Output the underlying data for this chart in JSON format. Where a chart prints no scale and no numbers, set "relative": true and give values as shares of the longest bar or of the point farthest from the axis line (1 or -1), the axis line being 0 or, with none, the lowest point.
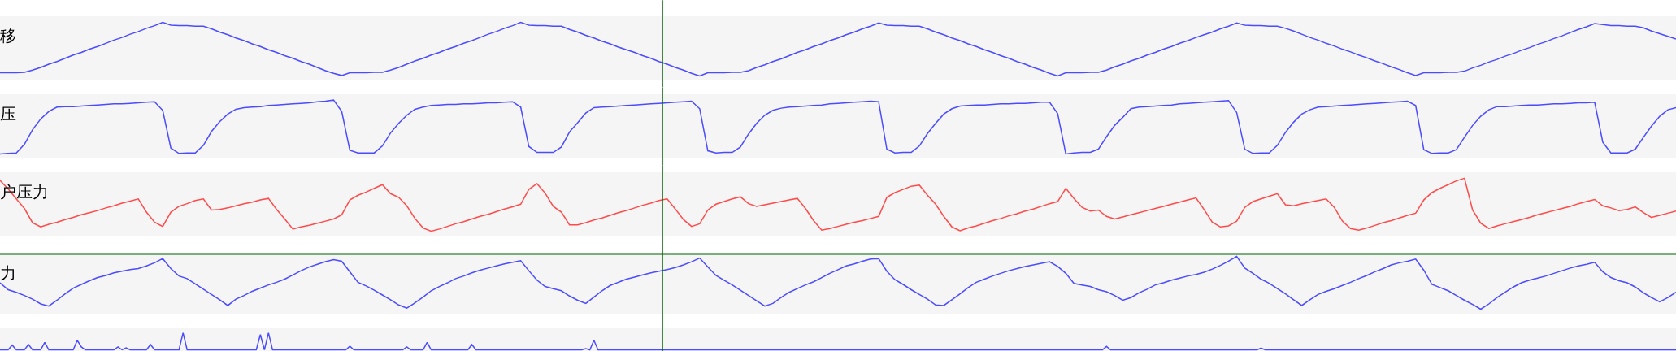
{
  "chart_data": [
    {
      "type": "line",
      "title": "移",
      "relative": true,
      "categories": [
        null,
        null,
        null,
        null,
        null,
        null,
        null,
        null,
        null,
        null,
        null,
        null,
        null,
        null,
        null,
        null,
        null,
        null,
        null,
        null,
        null,
        null,
        null,
        null,
        null,
        null,
        null,
        null,
        null,
        null,
        null,
        null,
        null,
        null,
        null,
        null,
        null,
        null,
        null,
        null,
        null,
        null,
        null,
        null,
        null,
        null,
        null,
        null,
        null,
        null,
        null,
        null,
        null,
        null,
        null,
        null,
        null,
        null,
        null,
        null,
        null,
        null,
        null,
        null,
        null,
        null,
        null,
        null,
        null,
        null,
        null,
        null,
        null,
        null,
        null,
        null,
        null,
        null,
        null,
        null,
        null,
        null,
        null,
        null,
        null,
        null,
        null,
        null,
        null,
        null,
        null,
        null,
        null,
        null,
        null,
        null,
        null,
        null,
        null,
        null,
        null,
        null,
        null,
        null,
        null,
        null,
        null,
        null,
        null,
        null,
        null,
        null,
        null,
        null,
        null,
        null,
        null,
        null,
        null,
        null,
        null,
        null,
        null,
        null,
        null,
        null,
        null,
        null,
        null,
        null,
        null,
        null,
        null,
        null,
        null,
        null,
        null,
        null,
        null,
        null,
        null,
        null,
        null,
        null,
        null,
        null,
        null,
        null,
        null,
        null,
        null,
        null,
        null,
        null,
        null,
        null,
        null,
        null,
        null,
        null,
        null,
        null,
        null,
        null,
        null,
        null,
        null,
        null,
        null,
        null,
        null,
        null,
        null,
        null,
        null,
        null,
        null,
        null,
        null,
        null,
        null,
        null,
        null,
        null,
        null,
        null,
        null,
        null,
        null,
        null,
        null,
        null,
        null,
        null,
        null,
        null,
        null,
        null,
        null,
        null,
        null,
        null,
        null,
        null,
        null,
        null,
        null
      ],
      "series": [
        {
          "color": "#4b4bff",
          "values": [
            0.06,
            0.06,
            0.06,
            0.07,
            0.11,
            0.16,
            0.22,
            0.27,
            0.33,
            0.39,
            0.44,
            0.5,
            0.55,
            0.61,
            0.67,
            0.72,
            0.78,
            0.83,
            0.89,
            0.94,
            1.0,
            0.95,
            0.94,
            0.94,
            0.93,
            0.93,
            0.88,
            0.82,
            0.77,
            0.71,
            0.66,
            0.6,
            0.55,
            0.49,
            0.44,
            0.38,
            0.33,
            0.27,
            0.22,
            0.16,
            0.1,
            0.05,
            0.01,
            0.06,
            0.06,
            0.06,
            0.07,
            0.07,
            0.11,
            0.16,
            0.22,
            0.28,
            0.33,
            0.39,
            0.44,
            0.5,
            0.55,
            0.61,
            0.66,
            0.72,
            0.78,
            0.83,
            0.89,
            0.94,
            1.0,
            0.95,
            0.94,
            0.94,
            0.93,
            0.93,
            0.87,
            0.82,
            0.76,
            0.71,
            0.65,
            0.6,
            0.54,
            0.49,
            0.44,
            0.38,
            0.33,
            0.27,
            0.22,
            0.16,
            0.11,
            0.05,
            0.0,
            0.06,
            0.06,
            0.06,
            0.07,
            0.07,
            0.1,
            0.16,
            0.21,
            0.27,
            0.32,
            0.38,
            0.44,
            0.49,
            0.55,
            0.6,
            0.66,
            0.71,
            0.77,
            0.82,
            0.88,
            0.93,
            0.99,
            0.95,
            0.94,
            0.94,
            0.93,
            0.93,
            0.88,
            0.82,
            0.77,
            0.71,
            0.66,
            0.6,
            0.55,
            0.49,
            0.44,
            0.38,
            0.33,
            0.27,
            0.22,
            0.16,
            0.11,
            0.05,
            0.0,
            0.06,
            0.06,
            0.06,
            0.07,
            0.07,
            0.11,
            0.17,
            0.22,
            0.28,
            0.33,
            0.39,
            0.44,
            0.5,
            0.55,
            0.61,
            0.66,
            0.72,
            0.77,
            0.82,
            0.88,
            0.93,
            0.99,
            0.95,
            0.94,
            0.94,
            0.93,
            0.93,
            0.89,
            0.84,
            0.78,
            0.72,
            0.67,
            0.61,
            0.56,
            0.5,
            0.45,
            0.39,
            0.34,
            0.28,
            0.23,
            0.17,
            0.12,
            0.06,
            0.01,
            0.06,
            0.06,
            0.06,
            0.07,
            0.07,
            0.09,
            0.15,
            0.2,
            0.26,
            0.31,
            0.37,
            0.42,
            0.48,
            0.53,
            0.59,
            0.64,
            0.7,
            0.75,
            0.81,
            0.87,
            0.92,
            0.98,
            0.96,
            0.94,
            0.94,
            0.93,
            0.93,
            0.9,
            0.84,
            0.79,
            0.74,
            0.69
          ]
        }
      ]
    },
    {
      "type": "line",
      "title": "压",
      "relative": true,
      "categories": [
        null,
        null,
        null,
        null,
        null,
        null,
        null,
        null,
        null,
        null,
        null,
        null,
        null,
        null,
        null,
        null,
        null,
        null,
        null,
        null,
        null,
        null,
        null,
        null,
        null,
        null,
        null,
        null,
        null,
        null,
        null,
        null,
        null,
        null,
        null,
        null,
        null,
        null,
        null,
        null,
        null,
        null,
        null,
        null,
        null,
        null,
        null,
        null,
        null,
        null,
        null,
        null,
        null,
        null,
        null,
        null,
        null,
        null,
        null,
        null,
        null,
        null,
        null,
        null,
        null,
        null,
        null,
        null,
        null,
        null,
        null,
        null,
        null,
        null,
        null,
        null,
        null,
        null,
        null,
        null,
        null,
        null,
        null,
        null,
        null,
        null,
        null,
        null,
        null,
        null,
        null,
        null,
        null,
        null,
        null,
        null,
        null,
        null,
        null,
        null,
        null,
        null,
        null,
        null,
        null,
        null,
        null,
        null,
        null,
        null,
        null,
        null,
        null,
        null,
        null,
        null,
        null,
        null,
        null,
        null,
        null,
        null,
        null,
        null,
        null,
        null,
        null,
        null,
        null,
        null,
        null,
        null,
        null,
        null,
        null,
        null,
        null,
        null,
        null,
        null,
        null,
        null,
        null,
        null,
        null,
        null,
        null,
        null,
        null,
        null,
        null,
        null,
        null,
        null,
        null,
        null,
        null,
        null,
        null,
        null,
        null,
        null,
        null,
        null,
        null,
        null,
        null,
        null,
        null,
        null,
        null,
        null,
        null,
        null,
        null,
        null,
        null,
        null,
        null,
        null,
        null,
        null,
        null,
        null,
        null,
        null,
        null,
        null,
        null,
        null,
        null,
        null,
        null,
        null,
        null,
        null,
        null,
        null,
        null,
        null,
        null,
        null,
        null,
        null,
        null,
        null,
        null
      ],
      "series": [
        {
          "color": "#4b4bff",
          "values": [
            0.0,
            0.01,
            0.02,
            0.18,
            0.45,
            0.65,
            0.79,
            0.87,
            0.88,
            0.88,
            0.89,
            0.9,
            0.91,
            0.92,
            0.93,
            0.93,
            0.94,
            0.95,
            0.96,
            0.97,
            0.81,
            0.11,
            0.01,
            0.02,
            0.02,
            0.16,
            0.42,
            0.6,
            0.74,
            0.83,
            0.86,
            0.87,
            0.88,
            0.9,
            0.91,
            0.92,
            0.93,
            0.94,
            0.95,
            0.97,
            0.98,
            1.0,
            0.79,
            0.07,
            0.02,
            0.02,
            0.02,
            0.15,
            0.39,
            0.57,
            0.72,
            0.83,
            0.87,
            0.9,
            0.91,
            0.92,
            0.92,
            0.93,
            0.93,
            0.94,
            0.95,
            0.95,
            0.96,
            0.97,
            0.87,
            0.14,
            0.03,
            0.03,
            0.03,
            0.13,
            0.41,
            0.58,
            0.76,
            0.86,
            0.87,
            0.88,
            0.89,
            0.9,
            0.91,
            0.92,
            0.93,
            0.94,
            0.95,
            0.96,
            0.97,
            0.98,
            0.84,
            0.06,
            0.02,
            0.03,
            0.03,
            0.13,
            0.37,
            0.57,
            0.72,
            0.81,
            0.85,
            0.87,
            0.88,
            0.89,
            0.9,
            0.91,
            0.93,
            0.94,
            0.95,
            0.96,
            0.97,
            0.98,
            0.97,
            0.09,
            0.02,
            0.03,
            0.03,
            0.15,
            0.38,
            0.57,
            0.74,
            0.84,
            0.89,
            0.9,
            0.91,
            0.91,
            0.92,
            0.93,
            0.93,
            0.94,
            0.94,
            0.95,
            0.96,
            0.96,
            0.75,
            0.0,
            0.02,
            0.03,
            0.03,
            0.09,
            0.32,
            0.53,
            0.68,
            0.84,
            0.87,
            0.88,
            0.89,
            0.9,
            0.91,
            0.93,
            0.94,
            0.95,
            0.96,
            0.97,
            0.98,
            0.99,
            0.77,
            0.09,
            0.01,
            0.02,
            0.02,
            0.16,
            0.4,
            0.59,
            0.74,
            0.82,
            0.87,
            0.88,
            0.89,
            0.9,
            0.91,
            0.92,
            0.93,
            0.94,
            0.95,
            0.96,
            0.97,
            0.98,
            0.9,
            0.08,
            0.01,
            0.02,
            0.02,
            0.08,
            0.31,
            0.53,
            0.7,
            0.82,
            0.88,
            0.88,
            0.89,
            0.9,
            0.91,
            0.91,
            0.92,
            0.93,
            0.93,
            0.94,
            0.95,
            0.95,
            0.96,
            0.22,
            0.02,
            0.02,
            0.02,
            0.09,
            0.31,
            0.52,
            0.7,
            0.82,
            0.86
          ]
        }
      ]
    },
    {
      "type": "line",
      "title": "户压力",
      "relative": true,
      "categories": [
        null,
        null,
        null,
        null,
        null,
        null,
        null,
        null,
        null,
        null,
        null,
        null,
        null,
        null,
        null,
        null,
        null,
        null,
        null,
        null,
        null,
        null,
        null,
        null,
        null,
        null,
        null,
        null,
        null,
        null,
        null,
        null,
        null,
        null,
        null,
        null,
        null,
        null,
        null,
        null,
        null,
        null,
        null,
        null,
        null,
        null,
        null,
        null,
        null,
        null,
        null,
        null,
        null,
        null,
        null,
        null,
        null,
        null,
        null,
        null,
        null,
        null,
        null,
        null,
        null,
        null,
        null,
        null,
        null,
        null,
        null,
        null,
        null,
        null,
        null,
        null,
        null,
        null,
        null,
        null,
        null,
        null,
        null,
        null,
        null,
        null,
        null,
        null,
        null,
        null,
        null,
        null,
        null,
        null,
        null,
        null,
        null,
        null,
        null,
        null,
        null,
        null,
        null,
        null,
        null,
        null,
        null,
        null,
        null,
        null,
        null,
        null,
        null,
        null,
        null,
        null,
        null,
        null,
        null,
        null,
        null,
        null,
        null,
        null,
        null,
        null,
        null,
        null,
        null,
        null,
        null,
        null,
        null,
        null,
        null,
        null,
        null,
        null,
        null,
        null,
        null,
        null,
        null,
        null,
        null,
        null,
        null,
        null,
        null,
        null,
        null,
        null,
        null,
        null,
        null,
        null,
        null,
        null,
        null,
        null,
        null,
        null,
        null,
        null,
        null,
        null,
        null,
        null,
        null,
        null,
        null,
        null,
        null,
        null,
        null,
        null,
        null,
        null,
        null,
        null,
        null,
        null,
        null,
        null,
        null,
        null,
        null,
        null,
        null,
        null,
        null,
        null,
        null,
        null,
        null,
        null,
        null,
        null,
        null,
        null,
        null,
        null,
        null,
        null,
        null,
        null,
        null
      ],
      "series": [
        {
          "color": "#ff4a4a",
          "values": [
            0.96,
            0.8,
            0.61,
            0.43,
            0.16,
            0.08,
            0.13,
            0.17,
            0.22,
            0.26,
            0.31,
            0.35,
            0.39,
            0.44,
            0.48,
            0.53,
            0.57,
            0.61,
            0.36,
            0.17,
            0.09,
            0.36,
            0.47,
            0.52,
            0.58,
            0.61,
            0.4,
            0.41,
            0.44,
            0.48,
            0.52,
            0.55,
            0.59,
            0.62,
            0.41,
            0.23,
            0.04,
            0.08,
            0.11,
            0.15,
            0.19,
            0.23,
            0.31,
            0.59,
            0.68,
            0.74,
            0.81,
            0.88,
            0.71,
            0.64,
            0.48,
            0.24,
            0.06,
            0.0,
            0.04,
            0.09,
            0.14,
            0.18,
            0.23,
            0.28,
            0.32,
            0.37,
            0.42,
            0.46,
            0.51,
            0.79,
            0.9,
            0.72,
            0.47,
            0.36,
            0.12,
            0.12,
            0.16,
            0.21,
            0.25,
            0.3,
            0.35,
            0.39,
            0.44,
            0.49,
            0.53,
            0.58,
            0.61,
            0.42,
            0.22,
            0.09,
            0.14,
            0.4,
            0.51,
            0.56,
            0.61,
            0.65,
            0.52,
            0.47,
            0.5,
            0.53,
            0.56,
            0.59,
            0.62,
            0.43,
            0.2,
            0.02,
            0.05,
            0.09,
            0.13,
            0.17,
            0.2,
            0.24,
            0.28,
            0.64,
            0.73,
            0.79,
            0.85,
            0.87,
            0.68,
            0.51,
            0.28,
            0.08,
            0.01,
            0.06,
            0.1,
            0.15,
            0.2,
            0.24,
            0.29,
            0.33,
            0.38,
            0.42,
            0.47,
            0.52,
            0.56,
            0.81,
            0.62,
            0.45,
            0.38,
            0.4,
            0.28,
            0.23,
            0.27,
            0.31,
            0.35,
            0.39,
            0.43,
            0.47,
            0.51,
            0.55,
            0.59,
            0.63,
            0.41,
            0.17,
            0.08,
            0.1,
            0.19,
            0.45,
            0.56,
            0.61,
            0.66,
            0.71,
            0.5,
            0.48,
            0.52,
            0.55,
            0.58,
            0.61,
            0.45,
            0.19,
            0.05,
            0.02,
            0.06,
            0.11,
            0.16,
            0.2,
            0.25,
            0.3,
            0.34,
            0.59,
            0.73,
            0.81,
            0.88,
            0.95,
            1.0,
            0.4,
            0.15,
            0.05,
            0.1,
            0.14,
            0.18,
            0.22,
            0.26,
            0.31,
            0.35,
            0.39,
            0.43,
            0.47,
            0.52,
            0.56,
            0.6,
            0.48,
            0.44,
            0.39,
            0.41,
            0.46,
            0.35,
            0.26,
            0.3,
            0.34,
            0.38
          ]
        }
      ]
    },
    {
      "type": "line",
      "title": "力",
      "relative": true,
      "categories": [
        null,
        null,
        null,
        null,
        null,
        null,
        null,
        null,
        null,
        null,
        null,
        null,
        null,
        null,
        null,
        null,
        null,
        null,
        null,
        null,
        null,
        null,
        null,
        null,
        null,
        null,
        null,
        null,
        null,
        null,
        null,
        null,
        null,
        null,
        null,
        null,
        null,
        null,
        null,
        null,
        null,
        null,
        null,
        null,
        null,
        null,
        null,
        null,
        null,
        null,
        null,
        null,
        null,
        null,
        null,
        null,
        null,
        null,
        null,
        null,
        null,
        null,
        null,
        null,
        null,
        null,
        null,
        null,
        null,
        null,
        null,
        null,
        null,
        null,
        null,
        null,
        null,
        null,
        null,
        null,
        null,
        null,
        null,
        null,
        null,
        null,
        null,
        null,
        null,
        null,
        null,
        null,
        null,
        null,
        null,
        null,
        null,
        null,
        null,
        null,
        null,
        null,
        null,
        null,
        null,
        null,
        null,
        null,
        null,
        null,
        null,
        null,
        null,
        null,
        null,
        null,
        null,
        null,
        null,
        null,
        null,
        null,
        null,
        null,
        null,
        null,
        null,
        null,
        null,
        null,
        null,
        null,
        null,
        null,
        null,
        null,
        null,
        null,
        null,
        null,
        null,
        null,
        null,
        null,
        null,
        null,
        null,
        null,
        null,
        null,
        null,
        null,
        null,
        null,
        null,
        null,
        null,
        null,
        null,
        null,
        null,
        null,
        null,
        null,
        null,
        null,
        null,
        null,
        null,
        null,
        null,
        null,
        null,
        null,
        null,
        null,
        null,
        null,
        null,
        null,
        null,
        null,
        null,
        null,
        null,
        null,
        null,
        null,
        null,
        null,
        null,
        null,
        null,
        null,
        null,
        null,
        null,
        null,
        null,
        null,
        null,
        null,
        null,
        null,
        null,
        null,
        null
      ],
      "series": [
        {
          "color": "#4b4bff",
          "values": [
            0.5,
            0.37,
            0.32,
            0.26,
            0.19,
            0.1,
            0.06,
            0.17,
            0.29,
            0.4,
            0.47,
            0.54,
            0.6,
            0.64,
            0.69,
            0.72,
            0.75,
            0.77,
            0.82,
            0.88,
            0.96,
            0.77,
            0.63,
            0.58,
            0.48,
            0.38,
            0.28,
            0.18,
            0.07,
            0.19,
            0.26,
            0.34,
            0.4,
            0.46,
            0.51,
            0.57,
            0.65,
            0.73,
            0.8,
            0.85,
            0.9,
            0.94,
            0.91,
            0.71,
            0.51,
            0.44,
            0.36,
            0.27,
            0.18,
            0.08,
            0.02,
            0.12,
            0.23,
            0.35,
            0.43,
            0.5,
            0.58,
            0.63,
            0.69,
            0.74,
            0.78,
            0.82,
            0.86,
            0.89,
            0.92,
            0.73,
            0.55,
            0.43,
            0.39,
            0.35,
            0.25,
            0.17,
            0.11,
            0.23,
            0.35,
            0.45,
            0.51,
            0.57,
            0.61,
            0.65,
            0.69,
            0.72,
            0.75,
            0.79,
            0.84,
            0.9,
            0.97,
            0.8,
            0.64,
            0.55,
            0.46,
            0.36,
            0.26,
            0.16,
            0.06,
            0.11,
            0.22,
            0.32,
            0.39,
            0.46,
            0.52,
            0.6,
            0.68,
            0.75,
            0.82,
            0.86,
            0.91,
            0.95,
            0.96,
            0.72,
            0.56,
            0.47,
            0.37,
            0.28,
            0.19,
            0.08,
            0.07,
            0.18,
            0.29,
            0.41,
            0.51,
            0.57,
            0.63,
            0.68,
            0.73,
            0.77,
            0.81,
            0.84,
            0.87,
            0.9,
            0.81,
            0.68,
            0.49,
            0.46,
            0.43,
            0.37,
            0.33,
            0.26,
            0.17,
            0.22,
            0.31,
            0.38,
            0.46,
            0.5,
            0.55,
            0.59,
            0.63,
            0.66,
            0.7,
            0.76,
            0.83,
            0.91,
            1.0,
            0.78,
            0.68,
            0.57,
            0.49,
            0.39,
            0.29,
            0.18,
            0.07,
            0.18,
            0.28,
            0.34,
            0.39,
            0.45,
            0.51,
            0.58,
            0.64,
            0.71,
            0.77,
            0.84,
            0.88,
            0.91,
            0.95,
            0.74,
            0.47,
            0.41,
            0.35,
            0.26,
            0.17,
            0.09,
            0.0,
            0.1,
            0.22,
            0.32,
            0.42,
            0.5,
            0.55,
            0.59,
            0.63,
            0.68,
            0.73,
            0.78,
            0.82,
            0.85,
            0.89,
            0.71,
            0.6,
            0.54,
            0.5,
            0.42,
            0.31,
            0.22,
            0.14,
            0.22,
            0.32
          ]
        }
      ]
    },
    {
      "type": "line",
      "relative": true,
      "categories": [
        null,
        null,
        null,
        null,
        null,
        null,
        null,
        null,
        null,
        null,
        null,
        null,
        null,
        null,
        null,
        null,
        null,
        null,
        null,
        null,
        null,
        null,
        null,
        null,
        null,
        null,
        null,
        null,
        null,
        null,
        null,
        null,
        null,
        null,
        null,
        null,
        null,
        null,
        null,
        null,
        null,
        null,
        null,
        null,
        null,
        null,
        null,
        null,
        null,
        null,
        null,
        null,
        null,
        null,
        null,
        null,
        null,
        null,
        null,
        null,
        null,
        null,
        null,
        null,
        null,
        null,
        null,
        null,
        null,
        null,
        null,
        null,
        null,
        null,
        null,
        null,
        null,
        null,
        null,
        null,
        null,
        null,
        null,
        null,
        null,
        null,
        null,
        null,
        null,
        null,
        null,
        null,
        null,
        null,
        null,
        null,
        null,
        null,
        null,
        null,
        null,
        null,
        null,
        null,
        null,
        null,
        null,
        null,
        null,
        null,
        null,
        null,
        null,
        null,
        null,
        null,
        null,
        null,
        null,
        null,
        null,
        null,
        null,
        null,
        null,
        null,
        null,
        null,
        null,
        null,
        null,
        null,
        null,
        null,
        null,
        null,
        null,
        null,
        null,
        null,
        null,
        null,
        null,
        null,
        null,
        null,
        null,
        null,
        null,
        null,
        null,
        null,
        null,
        null,
        null,
        null,
        null,
        null,
        null,
        null,
        null,
        null,
        null,
        null,
        null,
        null,
        null,
        null,
        null,
        null,
        null,
        null,
        null,
        null,
        null,
        null,
        null,
        null,
        null,
        null,
        null,
        null,
        null,
        null,
        null,
        null,
        null,
        null,
        null,
        null,
        null,
        null,
        null,
        null,
        null,
        null,
        null,
        null,
        null,
        null,
        null,
        null,
        null,
        null,
        null,
        null,
        null,
        null,
        null,
        null,
        null,
        null,
        null,
        null,
        null,
        null,
        null,
        null,
        null,
        null,
        null,
        null,
        null,
        null,
        null,
        null,
        null,
        null,
        null,
        null,
        null,
        null,
        null,
        null,
        null,
        null,
        null,
        null,
        null,
        null,
        null,
        null,
        null,
        null,
        null,
        null,
        null,
        null,
        null,
        null,
        null,
        null,
        null,
        null,
        null,
        null,
        null,
        null,
        null,
        null,
        null,
        null,
        null,
        null,
        null,
        null,
        null,
        null,
        null,
        null,
        null,
        null,
        null,
        null,
        null,
        null,
        null,
        null,
        null,
        null,
        null,
        null,
        null,
        null,
        null,
        null,
        null,
        null,
        null,
        null,
        null,
        null,
        null,
        null,
        null,
        null,
        null,
        null,
        null,
        null,
        null,
        null,
        null,
        null,
        null,
        null,
        null,
        null,
        null,
        null,
        null,
        null,
        null,
        null,
        null,
        null,
        null,
        null,
        null,
        null,
        null,
        null,
        null,
        null,
        null,
        null,
        null,
        null,
        null,
        null,
        null,
        null,
        null,
        null,
        null,
        null,
        null,
        null,
        null,
        null,
        null,
        null,
        null,
        null,
        null,
        null,
        null,
        null,
        null,
        null,
        null,
        null,
        null,
        null,
        null,
        null,
        null,
        null,
        null,
        null,
        null,
        null,
        null,
        null,
        null,
        null,
        null,
        null,
        null,
        null,
        null,
        null,
        null,
        null,
        null,
        null,
        null,
        null,
        null,
        null,
        null,
        null,
        null,
        null,
        null,
        null,
        null,
        null,
        null,
        null,
        null,
        null,
        null,
        null,
        null,
        null,
        null,
        null,
        null,
        null,
        null,
        null,
        null,
        null,
        null,
        null,
        null,
        null,
        null,
        null,
        null,
        null,
        null
      ],
      "series": [
        {
          "color": "#4b4bff",
          "values": [
            0,
            0,
            0,
            0.28,
            0,
            0,
            0,
            0.31,
            0,
            0,
            0,
            0.44,
            0,
            0,
            0,
            0,
            0,
            0,
            0,
            0.56,
            0.17,
            0,
            0,
            0,
            0,
            0,
            0,
            0,
            0,
            0.17,
            0,
            0.12,
            0,
            0,
            0,
            0,
            0,
            0.31,
            0,
            0,
            0,
            0,
            0,
            0,
            0,
            1,
            0,
            0,
            0,
            0,
            0,
            0,
            0,
            0,
            0,
            0,
            0,
            0,
            0,
            0,
            0,
            0,
            0,
            0,
            0.9,
            0,
            1,
            0,
            0,
            0,
            0,
            0,
            0,
            0,
            0,
            0,
            0,
            0,
            0,
            0,
            0,
            0,
            0,
            0,
            0,
            0,
            0.22,
            0,
            0,
            0,
            0,
            0,
            0,
            0,
            0,
            0,
            0,
            0,
            0,
            0,
            0.17,
            0,
            0,
            0,
            0,
            0.44,
            0,
            0,
            0,
            0,
            0,
            0,
            0,
            0,
            0,
            0,
            0.31,
            0,
            0,
            0,
            0,
            0,
            0,
            0,
            0,
            0,
            0,
            0,
            0,
            0,
            0,
            0,
            0,
            0,
            0,
            0,
            0,
            0,
            0,
            0,
            0,
            0,
            0,
            0,
            0.07,
            0,
            0.56,
            0,
            0,
            0,
            0,
            0,
            0,
            0,
            0,
            0,
            0,
            0,
            0,
            0,
            0,
            0,
            0,
            0,
            0,
            0,
            0,
            0,
            0,
            0,
            0,
            0,
            0,
            0,
            0,
            0,
            0,
            0,
            0,
            0,
            0,
            0,
            0,
            0,
            0,
            0,
            0,
            0,
            0,
            0,
            0,
            0,
            0,
            0,
            0,
            0,
            0,
            0,
            0,
            0,
            0,
            0,
            0,
            0,
            0,
            0,
            0,
            0,
            0,
            0,
            0,
            0,
            0,
            0,
            0,
            0,
            0,
            0,
            0,
            0,
            0,
            0,
            0,
            0,
            0,
            0,
            0,
            0,
            0,
            0,
            0,
            0,
            0,
            0,
            0,
            0,
            0,
            0,
            0,
            0,
            0,
            0,
            0,
            0,
            0,
            0,
            0,
            0,
            0,
            0,
            0,
            0,
            0,
            0,
            0,
            0,
            0,
            0,
            0,
            0,
            0,
            0,
            0,
            0,
            0,
            0,
            0,
            0,
            0,
            0,
            0,
            0,
            0.2,
            0,
            0,
            0,
            0,
            0,
            0,
            0,
            0,
            0,
            0,
            0,
            0,
            0,
            0,
            0,
            0,
            0,
            0,
            0,
            0,
            0,
            0,
            0,
            0,
            0,
            0,
            0,
            0,
            0,
            0,
            0,
            0,
            0,
            0,
            0,
            0,
            0,
            0.1,
            0,
            0,
            0,
            0,
            0,
            0,
            0,
            0,
            0,
            0,
            0,
            0,
            0,
            0,
            0,
            0,
            0,
            0,
            0,
            0,
            0,
            0,
            0,
            0,
            0,
            0,
            0,
            0,
            0,
            0,
            0,
            0,
            0,
            0,
            0,
            0,
            0,
            0,
            0,
            0,
            0,
            0,
            0,
            0,
            0,
            0,
            0,
            0,
            0,
            0,
            0,
            0,
            0,
            0,
            0,
            0,
            0,
            0,
            0,
            0,
            0,
            0,
            0,
            0,
            0,
            0,
            0,
            0,
            0,
            0,
            0,
            0,
            0,
            0,
            0,
            0,
            0,
            0,
            0,
            0,
            0,
            0,
            0,
            0,
            0,
            0,
            0,
            0,
            0,
            0,
            0,
            0,
            0,
            0,
            0,
            0,
            0,
            0,
            0,
            0,
            0,
            0
          ]
        }
      ]
    }
  ]
}
